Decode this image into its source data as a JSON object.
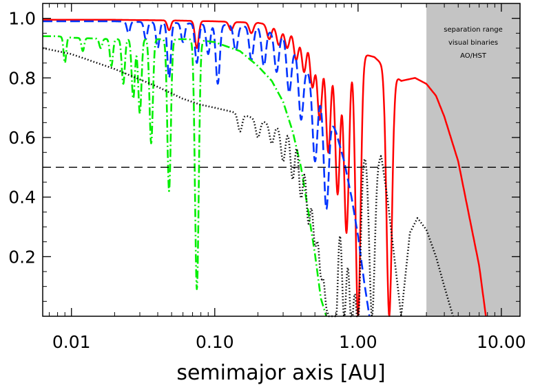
{
  "chart_data": {
    "type": "line",
    "title": "",
    "xlabel": "semimajor axis [AU]",
    "ylabel": "",
    "xscale": "log",
    "xlim": [
      0.0063,
      13.5
    ],
    "ylim": [
      0.0,
      1.05
    ],
    "grid": false,
    "legend": "none",
    "x_ticks": [
      {
        "value": 0.01,
        "label": "0.01"
      },
      {
        "value": 0.1,
        "label": "0.10"
      },
      {
        "value": 1.0,
        "label": "1.00"
      },
      {
        "value": 10.0,
        "label": "10.00"
      }
    ],
    "y_ticks": [
      {
        "value": 0.2,
        "label": "0.2"
      },
      {
        "value": 0.4,
        "label": "0.4"
      },
      {
        "value": 0.6,
        "label": "0.6"
      },
      {
        "value": 0.8,
        "label": "0.8"
      },
      {
        "value": 1.0,
        "label": "1.0"
      }
    ],
    "shaded_region": {
      "x_range": [
        3.0,
        13.5
      ],
      "color": "#c4c4c4",
      "label_lines": [
        "separation range",
        "visual binaries",
        "AO/HST"
      ]
    },
    "reference_lines": [
      {
        "y": 0.5,
        "color": "#000000",
        "style": "dashed"
      }
    ],
    "series": [
      {
        "color": "#ff0000",
        "style": "solid",
        "envelope": [
          [
            0.0063,
            0.995
          ],
          [
            0.02,
            0.995
          ],
          [
            0.05,
            0.993
          ],
          [
            0.1,
            0.99
          ],
          [
            0.2,
            0.985
          ],
          [
            0.3,
            0.97
          ],
          [
            0.5,
            0.94
          ],
          [
            0.7,
            0.91
          ],
          [
            1.0,
            0.885
          ],
          [
            1.3,
            0.87
          ],
          [
            1.6,
            0.83
          ],
          [
            2.0,
            0.79
          ],
          [
            2.5,
            0.8
          ],
          [
            3.0,
            0.78
          ],
          [
            3.5,
            0.74
          ],
          [
            4.0,
            0.67
          ],
          [
            5.0,
            0.52
          ],
          [
            6.0,
            0.33
          ],
          [
            7.0,
            0.17
          ],
          [
            7.8,
            0.0
          ]
        ],
        "dips": [
          [
            0.048,
            0.96
          ],
          [
            0.075,
            0.9
          ],
          [
            0.13,
            0.96
          ],
          [
            0.18,
            0.95
          ],
          [
            0.24,
            0.93
          ],
          [
            0.28,
            0.91
          ],
          [
            0.32,
            0.9
          ],
          [
            0.37,
            0.86
          ],
          [
            0.42,
            0.82
          ],
          [
            0.48,
            0.77
          ],
          [
            0.54,
            0.66
          ],
          [
            0.62,
            0.55
          ],
          [
            0.72,
            0.41
          ],
          [
            0.83,
            0.28
          ],
          [
            1.0,
            0.0
          ],
          [
            1.65,
            0.0
          ]
        ]
      },
      {
        "color": "#0033ff",
        "style": "dashed",
        "envelope": [
          [
            0.0063,
            0.99
          ],
          [
            0.02,
            0.99
          ],
          [
            0.05,
            0.985
          ],
          [
            0.1,
            0.98
          ],
          [
            0.2,
            0.97
          ],
          [
            0.3,
            0.94
          ],
          [
            0.4,
            0.86
          ],
          [
            0.5,
            0.78
          ],
          [
            0.6,
            0.7
          ],
          [
            0.7,
            0.62
          ],
          [
            0.8,
            0.52
          ],
          [
            0.9,
            0.4
          ],
          [
            1.0,
            0.27
          ],
          [
            1.1,
            0.12
          ],
          [
            1.2,
            0.0
          ]
        ],
        "dips": [
          [
            0.025,
            0.95
          ],
          [
            0.033,
            0.93
          ],
          [
            0.04,
            0.9
          ],
          [
            0.048,
            0.8
          ],
          [
            0.06,
            0.92
          ],
          [
            0.075,
            0.85
          ],
          [
            0.09,
            0.88
          ],
          [
            0.105,
            0.78
          ],
          [
            0.14,
            0.89
          ],
          [
            0.18,
            0.86
          ],
          [
            0.22,
            0.84
          ],
          [
            0.27,
            0.82
          ],
          [
            0.33,
            0.75
          ],
          [
            0.4,
            0.66
          ],
          [
            0.5,
            0.52
          ],
          [
            0.6,
            0.36
          ]
        ]
      },
      {
        "color": "#00ee00",
        "style": "dashdot",
        "envelope": [
          [
            0.0063,
            0.94
          ],
          [
            0.008,
            0.94
          ],
          [
            0.01,
            0.935
          ],
          [
            0.02,
            0.93
          ],
          [
            0.04,
            0.93
          ],
          [
            0.07,
            0.93
          ],
          [
            0.1,
            0.92
          ],
          [
            0.15,
            0.89
          ],
          [
            0.2,
            0.84
          ],
          [
            0.25,
            0.79
          ],
          [
            0.3,
            0.72
          ],
          [
            0.35,
            0.62
          ],
          [
            0.4,
            0.5
          ],
          [
            0.45,
            0.35
          ],
          [
            0.5,
            0.21
          ],
          [
            0.55,
            0.06
          ],
          [
            0.6,
            0.0
          ]
        ],
        "dips": [
          [
            0.009,
            0.85
          ],
          [
            0.012,
            0.89
          ],
          [
            0.016,
            0.9
          ],
          [
            0.019,
            0.84
          ],
          [
            0.023,
            0.78
          ],
          [
            0.027,
            0.73
          ],
          [
            0.03,
            0.68
          ],
          [
            0.036,
            0.58
          ],
          [
            0.048,
            0.42
          ],
          [
            0.075,
            0.09
          ]
        ]
      },
      {
        "color": "#000000",
        "style": "dotted",
        "envelope": [
          [
            0.0063,
            0.9
          ],
          [
            0.01,
            0.88
          ],
          [
            0.02,
            0.83
          ],
          [
            0.04,
            0.77
          ],
          [
            0.06,
            0.73
          ],
          [
            0.08,
            0.71
          ],
          [
            0.1,
            0.7
          ],
          [
            0.15,
            0.68
          ],
          [
            0.2,
            0.66
          ],
          [
            0.3,
            0.63
          ],
          [
            0.4,
            0.65
          ],
          [
            0.5,
            0.57
          ],
          [
            0.6,
            0.55
          ],
          [
            0.7,
            0.53
          ],
          [
            0.8,
            0.5
          ],
          [
            1.0,
            0.6
          ],
          [
            1.3,
            0.5
          ],
          [
            1.45,
            0.54
          ],
          [
            1.6,
            0.4
          ],
          [
            2.0,
            0.0
          ],
          [
            2.3,
            0.28
          ],
          [
            2.6,
            0.33
          ],
          [
            3.0,
            0.29
          ],
          [
            3.5,
            0.2
          ],
          [
            4.0,
            0.1
          ],
          [
            4.6,
            0.0
          ]
        ],
        "dips": [
          [
            0.15,
            0.62
          ],
          [
            0.2,
            0.6
          ],
          [
            0.25,
            0.58
          ],
          [
            0.3,
            0.52
          ],
          [
            0.35,
            0.46
          ],
          [
            0.4,
            0.4
          ],
          [
            0.45,
            0.32
          ],
          [
            0.5,
            0.26
          ],
          [
            0.55,
            0.18
          ],
          [
            0.6,
            0.12
          ],
          [
            0.65,
            0.06
          ],
          [
            0.7,
            0.03
          ],
          [
            0.8,
            0.0
          ],
          [
            0.9,
            0.0
          ],
          [
            1.0,
            0.0
          ],
          [
            1.25,
            0.0
          ]
        ]
      }
    ]
  }
}
